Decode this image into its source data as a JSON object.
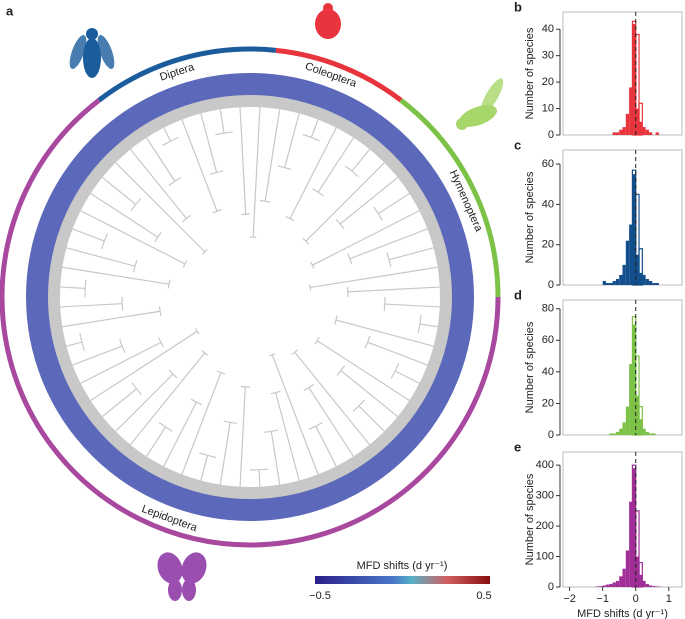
{
  "panel_a": {
    "label": "a",
    "clades": [
      {
        "name": "Diptera",
        "color": "#1b5c9c"
      },
      {
        "name": "Coleoptera",
        "color": "#e8343c"
      },
      {
        "name": "Hymenoptera",
        "color": "#7cc247"
      },
      {
        "name": "Lepidoptera",
        "color": "#a8489e"
      }
    ],
    "colorbar": {
      "title": "MFD shifts (d yr⁻¹)",
      "min_label": "−0.5",
      "max_label": "0.5"
    }
  },
  "chart_data": [
    {
      "type": "histogram",
      "panel": "b",
      "color": "#e8343c",
      "ylabel": "Number of species",
      "bins": [
        -1.2,
        -1.1,
        -1.0,
        -0.9,
        -0.8,
        -0.7,
        -0.6,
        -0.5,
        -0.4,
        -0.3,
        -0.2,
        -0.1,
        0,
        0.1,
        0.2,
        0.3,
        0.4,
        0.5,
        0.6,
        0.7,
        0.8
      ],
      "values": [
        0,
        0,
        0,
        0,
        0,
        1,
        1,
        2,
        3,
        8,
        18,
        42,
        10,
        5,
        3,
        2,
        1,
        0,
        1,
        0
      ],
      "outline_values": [
        0,
        0,
        0,
        0,
        0,
        0,
        0,
        0,
        0,
        0,
        0,
        43,
        38,
        12,
        0,
        0,
        0,
        0,
        0,
        0
      ],
      "xlim": [
        -2.2,
        1.4
      ],
      "ylim": [
        0,
        45
      ],
      "yticks": [
        0,
        10,
        20,
        30,
        40
      ],
      "vline": 0
    },
    {
      "type": "histogram",
      "panel": "c",
      "color": "#124f8c",
      "ylabel": "Number of species",
      "bins": [
        -1.2,
        -1.1,
        -1.0,
        -0.9,
        -0.8,
        -0.7,
        -0.6,
        -0.5,
        -0.4,
        -0.3,
        -0.2,
        -0.1,
        0,
        0.1,
        0.2,
        0.3,
        0.4,
        0.5,
        0.6,
        0.7,
        0.8
      ],
      "values": [
        0,
        0,
        2,
        1,
        1,
        2,
        3,
        5,
        10,
        22,
        30,
        55,
        15,
        6,
        5,
        3,
        2,
        1,
        1,
        0
      ],
      "outline_values": [
        0,
        0,
        0,
        0,
        0,
        0,
        0,
        0,
        0,
        0,
        0,
        57,
        45,
        18,
        0,
        0,
        0,
        0,
        0,
        0
      ],
      "xlim": [
        -2.2,
        1.4
      ],
      "ylim": [
        0,
        65
      ],
      "yticks": [
        0,
        20,
        40,
        60
      ],
      "vline": 0
    },
    {
      "type": "histogram",
      "panel": "d",
      "color": "#7cc247",
      "ylabel": "Number of species",
      "bins": [
        -1.2,
        -1.1,
        -1.0,
        -0.9,
        -0.8,
        -0.7,
        -0.6,
        -0.5,
        -0.4,
        -0.3,
        -0.2,
        -0.1,
        0,
        0.1,
        0.2,
        0.3,
        0.4,
        0.5,
        0.6,
        0.7,
        0.8
      ],
      "values": [
        0,
        0,
        0,
        0,
        1,
        1,
        2,
        4,
        8,
        18,
        45,
        70,
        25,
        10,
        4,
        2,
        1,
        1,
        0,
        0
      ],
      "outline_values": [
        0,
        0,
        0,
        0,
        0,
        0,
        0,
        0,
        0,
        0,
        0,
        75,
        50,
        18,
        0,
        0,
        0,
        0,
        0,
        0
      ],
      "xlim": [
        -2.2,
        1.4
      ],
      "ylim": [
        0,
        83
      ],
      "yticks": [
        0,
        20,
        40,
        60,
        80
      ],
      "vline": 0
    },
    {
      "type": "histogram",
      "panel": "e",
      "color": "#a02e96",
      "ylabel": "Number of species",
      "xlabel": "MFD shifts (d yr⁻¹)",
      "bins": [
        -1.2,
        -1.1,
        -1.0,
        -0.9,
        -0.8,
        -0.7,
        -0.6,
        -0.5,
        -0.4,
        -0.3,
        -0.2,
        -0.1,
        0,
        0.1,
        0.2,
        0.3,
        0.4,
        0.5,
        0.6,
        0.7,
        0.8
      ],
      "values": [
        2,
        3,
        5,
        8,
        10,
        15,
        20,
        35,
        60,
        120,
        280,
        390,
        100,
        40,
        20,
        10,
        5,
        3,
        2,
        1
      ],
      "outline_values": [
        0,
        0,
        0,
        0,
        0,
        0,
        0,
        0,
        0,
        0,
        0,
        400,
        250,
        80,
        0,
        0,
        0,
        0,
        0,
        0
      ],
      "xlim": [
        -2.2,
        1.4
      ],
      "ylim": [
        0,
        430
      ],
      "yticks": [
        0,
        100,
        200,
        300,
        400
      ],
      "xticks": [
        {
          "value": -2,
          "label": "−2"
        },
        {
          "value": -1,
          "label": "−1"
        },
        0,
        1
      ],
      "vline": 0
    }
  ]
}
